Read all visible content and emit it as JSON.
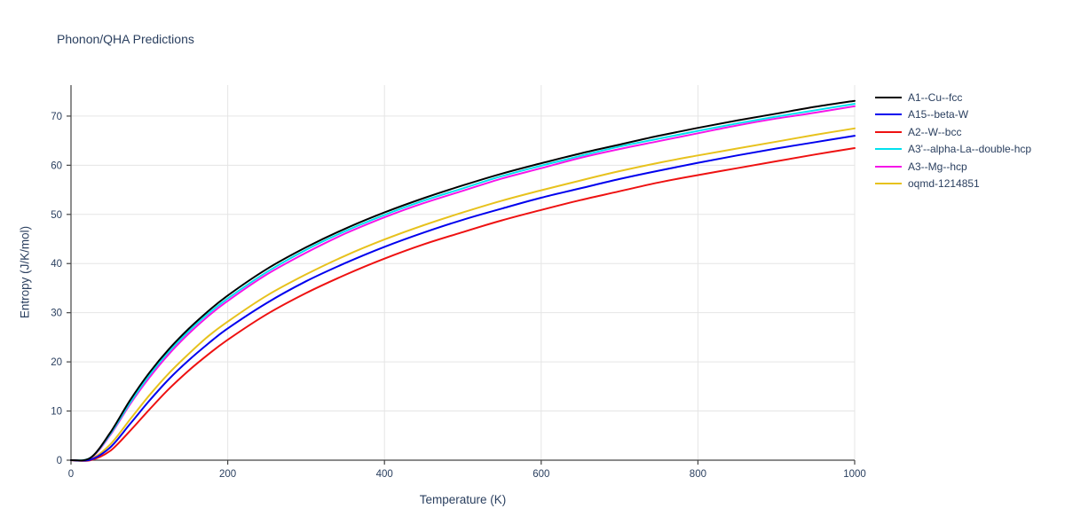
{
  "title": "Phonon/QHA Predictions",
  "axes": {
    "xlabel": "Temperature (K)",
    "ylabel": "Entropy (J/K/mol)"
  },
  "colors": {
    "text": "#2a3f5f",
    "axis_line": "#444444",
    "grid": "#e5e5e5",
    "background": "#ffffff"
  },
  "chart_data": {
    "type": "line",
    "title": "Phonon/QHA Predictions",
    "xlabel": "Temperature (K)",
    "ylabel": "Entropy (J/K/mol)",
    "xlim": [
      0,
      1000
    ],
    "ylim": [
      0,
      76.3
    ],
    "x_ticks": [
      0,
      200,
      400,
      600,
      800,
      1000
    ],
    "y_ticks": [
      0,
      10,
      20,
      30,
      40,
      50,
      60,
      70
    ],
    "grid": true,
    "legend_position": "outside-top-right",
    "x": [
      0,
      25,
      50,
      75,
      100,
      125,
      150,
      175,
      200,
      250,
      300,
      350,
      400,
      450,
      500,
      550,
      600,
      650,
      700,
      750,
      800,
      850,
      900,
      950,
      1000
    ],
    "series": [
      {
        "name": "A1--Cu--fcc",
        "color": "#000000",
        "values": [
          0,
          0.5,
          5.6,
          12.1,
          17.8,
          22.6,
          26.7,
          30.3,
          33.5,
          38.9,
          43.3,
          47.1,
          50.4,
          53.3,
          55.9,
          58.3,
          60.4,
          62.4,
          64.2,
          66.0,
          67.6,
          69.1,
          70.5,
          71.9,
          73.1
        ]
      },
      {
        "name": "A15--beta-W",
        "color": "#0000ee",
        "values": [
          0,
          0.1,
          2.6,
          7.3,
          12.1,
          16.5,
          20.3,
          23.7,
          26.8,
          32.0,
          36.4,
          40.1,
          43.4,
          46.3,
          48.9,
          51.2,
          53.4,
          55.3,
          57.2,
          58.9,
          60.5,
          62.0,
          63.4,
          64.7,
          66.0
        ]
      },
      {
        "name": "A2--W--bcc",
        "color": "#ee1111",
        "values": [
          0,
          0.0,
          1.9,
          5.9,
          10.3,
          14.5,
          18.2,
          21.5,
          24.5,
          29.7,
          34.0,
          37.7,
          41.0,
          43.9,
          46.4,
          48.8,
          50.9,
          52.9,
          54.7,
          56.5,
          58.0,
          59.4,
          60.8,
          62.2,
          63.5
        ]
      },
      {
        "name": "A3'--alpha-La--double-hcp",
        "color": "#00e1ee",
        "values": [
          0,
          0.5,
          5.3,
          11.6,
          17.3,
          22.1,
          26.2,
          29.8,
          32.9,
          38.3,
          42.8,
          46.6,
          49.9,
          52.8,
          55.3,
          57.8,
          59.9,
          61.9,
          63.8,
          65.4,
          67.0,
          68.5,
          69.9,
          71.2,
          72.5
        ]
      },
      {
        "name": "A3--Mg--hcp",
        "color": "#f516e8",
        "values": [
          0,
          0.4,
          5.1,
          11.3,
          16.8,
          21.6,
          25.7,
          29.3,
          32.4,
          37.8,
          42.2,
          46.1,
          49.4,
          52.3,
          54.8,
          57.3,
          59.4,
          61.5,
          63.3,
          64.9,
          66.5,
          68.1,
          69.5,
          70.7,
          72.0
        ]
      },
      {
        "name": "oqmd-1214851",
        "color": "#e7c21d",
        "values": [
          0,
          0.2,
          3.2,
          8.2,
          13.2,
          17.7,
          21.6,
          25.2,
          28.2,
          33.5,
          37.8,
          41.6,
          44.9,
          47.8,
          50.4,
          52.8,
          54.9,
          56.9,
          58.8,
          60.5,
          62.0,
          63.4,
          64.8,
          66.2,
          67.5
        ]
      }
    ]
  }
}
